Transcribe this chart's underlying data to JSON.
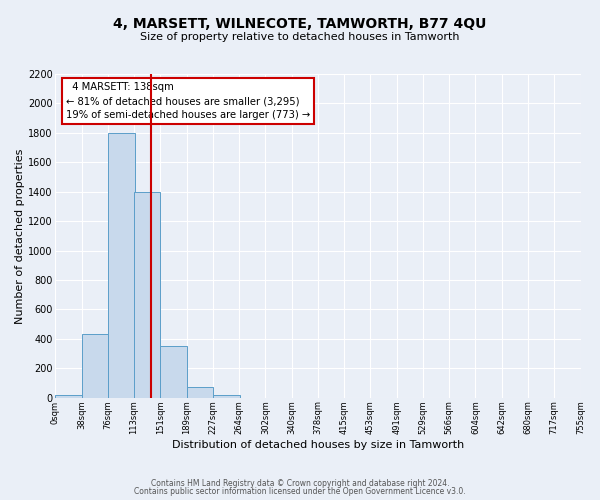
{
  "title": "4, MARSETT, WILNECOTE, TAMWORTH, B77 4QU",
  "subtitle": "Size of property relative to detached houses in Tamworth",
  "xlabel": "Distribution of detached houses by size in Tamworth",
  "ylabel": "Number of detached properties",
  "bar_left_edges": [
    0,
    38,
    76,
    113,
    151,
    189,
    227,
    264,
    302,
    340,
    378,
    415,
    453,
    491,
    529,
    566,
    604,
    642,
    680,
    717
  ],
  "bar_heights": [
    20,
    430,
    1800,
    1400,
    350,
    75,
    20,
    0,
    0,
    0,
    0,
    0,
    0,
    0,
    0,
    0,
    0,
    0,
    0,
    0
  ],
  "bin_width": 38,
  "bar_color": "#c8d9ec",
  "bar_edge_color": "#5b9ec9",
  "property_line_x": 138,
  "property_line_color": "#cc0000",
  "annotation_title": "4 MARSETT: 138sqm",
  "annotation_line1": "← 81% of detached houses are smaller (3,295)",
  "annotation_line2": "19% of semi-detached houses are larger (773) →",
  "annotation_box_color": "#ffffff",
  "annotation_box_edge_color": "#cc0000",
  "tick_labels": [
    "0sqm",
    "38sqm",
    "76sqm",
    "113sqm",
    "151sqm",
    "189sqm",
    "227sqm",
    "264sqm",
    "302sqm",
    "340sqm",
    "378sqm",
    "415sqm",
    "453sqm",
    "491sqm",
    "529sqm",
    "566sqm",
    "604sqm",
    "642sqm",
    "680sqm",
    "717sqm",
    "755sqm"
  ],
  "ylim": [
    0,
    2200
  ],
  "yticks": [
    0,
    200,
    400,
    600,
    800,
    1000,
    1200,
    1400,
    1600,
    1800,
    2000,
    2200
  ],
  "footer_line1": "Contains HM Land Registry data © Crown copyright and database right 2024.",
  "footer_line2": "Contains public sector information licensed under the Open Government Licence v3.0.",
  "bg_color": "#eaeff7",
  "plot_bg_color": "#eaeff7",
  "grid_color": "#ffffff"
}
